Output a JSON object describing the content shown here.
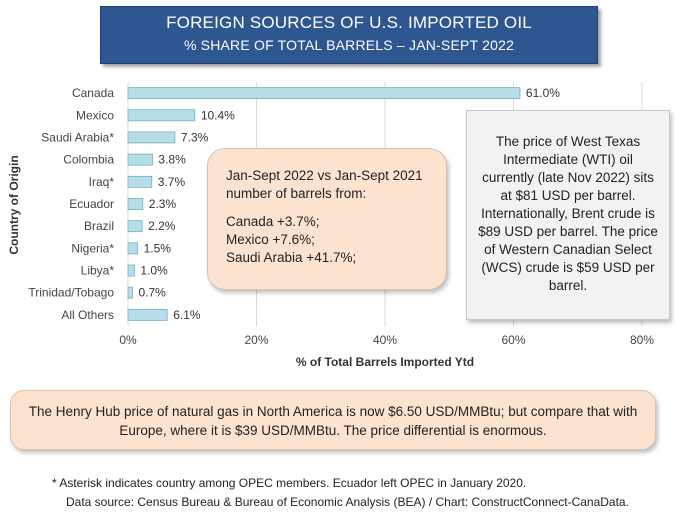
{
  "header": {
    "title": "FOREIGN SOURCES OF U.S. IMPORTED OIL",
    "subtitle": "% SHARE OF TOTAL BARRELS – JAN-SEPT 2022"
  },
  "chart_data": {
    "type": "bar",
    "orientation": "horizontal",
    "categories": [
      "Canada",
      "Mexico",
      "Saudi Arabia*",
      "Colombia",
      "Iraq*",
      "Ecuador",
      "Brazil",
      "Nigeria*",
      "Libya*",
      "Trinidad/Tobago",
      "All Others"
    ],
    "values": [
      61.0,
      10.4,
      7.3,
      3.8,
      3.7,
      2.3,
      2.2,
      1.5,
      1.0,
      0.7,
      6.1
    ],
    "value_labels": [
      "61.0%",
      "10.4%",
      "7.3%",
      "3.8%",
      "3.7%",
      "2.3%",
      "2.2%",
      "1.5%",
      "1.0%",
      "0.7%",
      "6.1%"
    ],
    "xlabel": "% of Total Barrels Imported Ytd",
    "ylabel": "Country of Origin",
    "xlim": [
      0,
      80
    ],
    "xticks": [
      "0%",
      "20%",
      "40%",
      "60%",
      "80%"
    ],
    "grid": "vertical",
    "bar_color": "#b7dde8",
    "bar_border_color": "#6fb3c6"
  },
  "callouts": {
    "comparison": {
      "heading_line1": "Jan-Sept 2022 vs Jan-Sept 2021",
      "heading_line2": "number of barrels from:",
      "items": [
        "Canada +3.7%;",
        "Mexico +7.6%;",
        "Saudi Arabia +41.7%;"
      ]
    },
    "prices": "The price of West Texas Intermediate (WTI) oil currently (late Nov 2022) sits at $81 USD per barrel. Internationally, Brent crude is $89 USD per barrel. The price of Western Canadian Select (WCS) crude is $59 USD per barrel.",
    "gas": "The Henry Hub price of natural gas in North America is now $6.50 USD/MMBtu; but compare that with Europe, where it is $39 USD/MMBtu. The price differential is enormous."
  },
  "footnotes": {
    "opec": "* Asterisk indicates country among OPEC members. Ecuador left OPEC in January 2020.",
    "source": "Data source: Census Bureau & Bureau of Economic Analysis (BEA) / Chart: ConstructConnect-CanaData."
  }
}
